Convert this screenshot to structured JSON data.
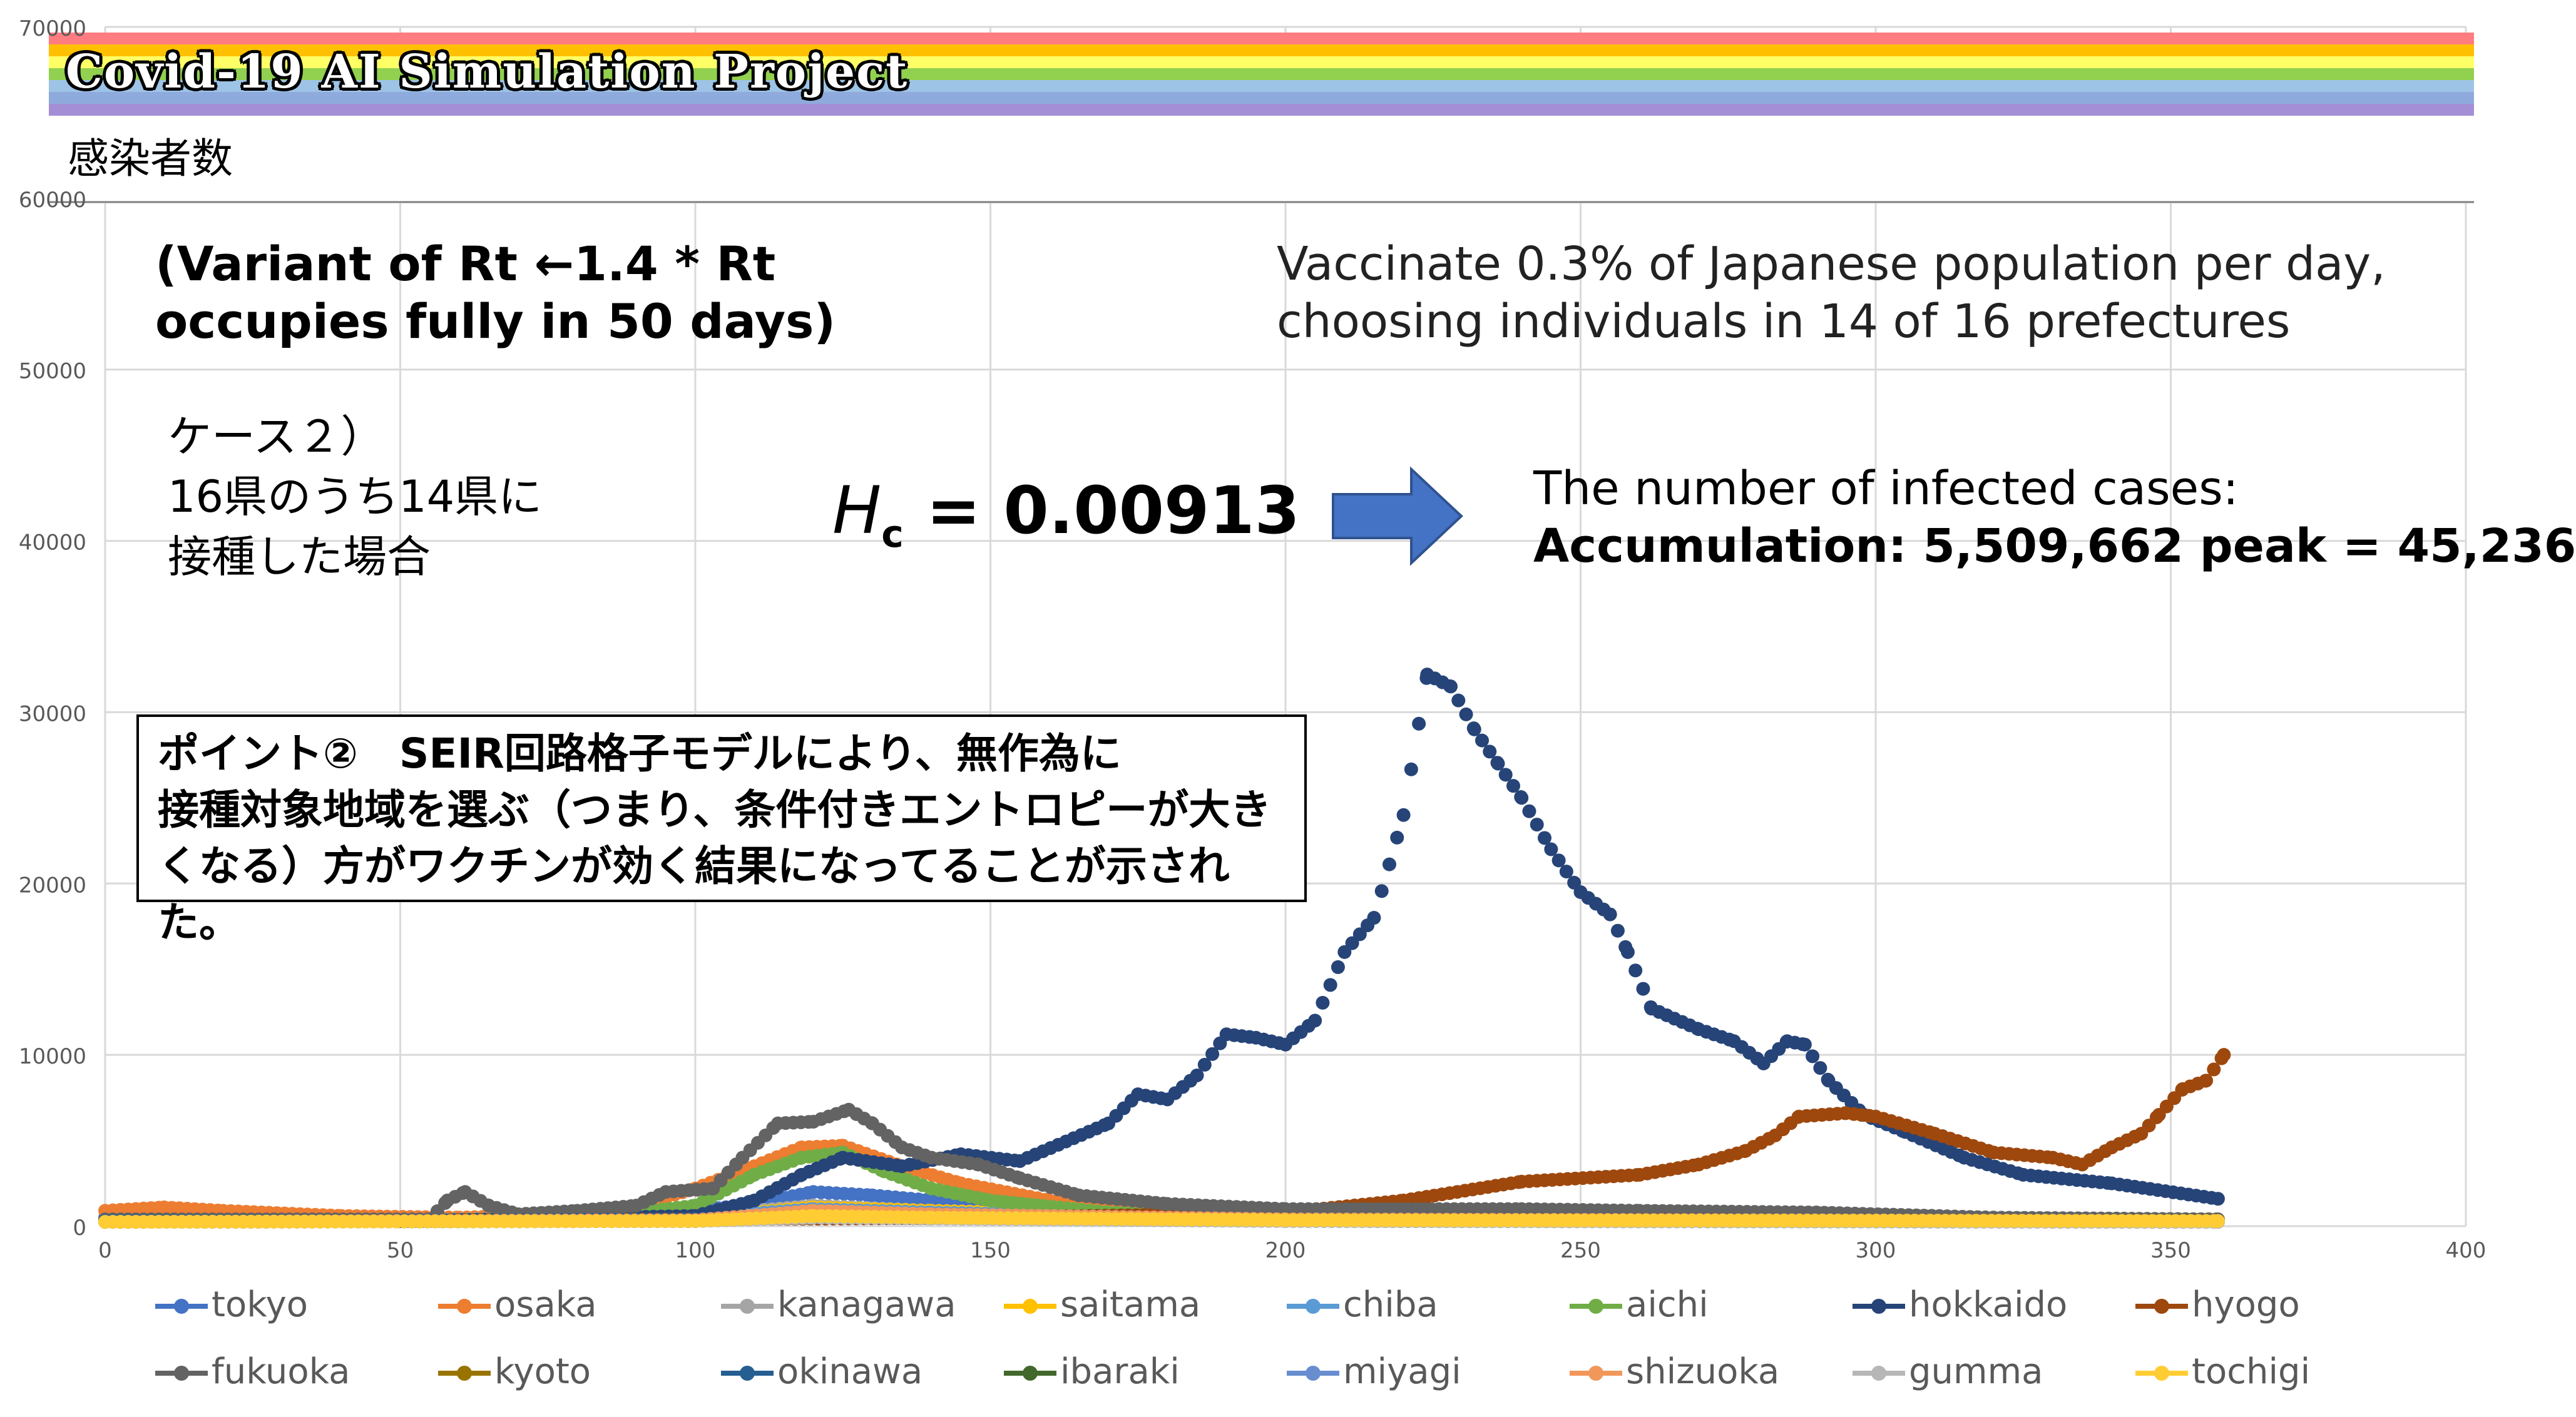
{
  "banner": {
    "title": "Covid-19 AI Simulation Project"
  },
  "header": {
    "jp_title": "感染者数"
  },
  "annotations": {
    "variant_line1": "(Variant of Rt ←1.4 * Rt",
    "variant_line2": "occupies fully in 50 days)",
    "vaccinate_line1": "Vaccinate 0.3% of Japanese population per day,",
    "vaccinate_line2": "choosing individuals in 14 of 16 prefectures",
    "case_line1": "ケース２）",
    "case_line2": "16県のうち14県に",
    "case_line3": "接種した場合",
    "hc_symbol": "H",
    "hc_subscript": "c",
    "hc_value": "= 0.00913",
    "infected_line1": "The number of infected cases:",
    "infected_line2": "Accumulation: 5,509,662 peak = 45,236",
    "point_line1": "ポイント②　SEIR回路格子モデルにより、無作為に",
    "point_line2": "接種対象地域を選ぶ（つまり、条件付きエントロピーが大き",
    "point_line3": "くなる）方がワクチンが効く結果になってることが示された。"
  },
  "colors": {
    "arrow": "#4472c4",
    "rainbow": [
      "#ff7c80",
      "#ffc000",
      "#ffff66",
      "#92d050",
      "#9dc3e6",
      "#8faadc",
      "#a48fd6"
    ]
  },
  "chart_data": {
    "type": "scatter",
    "xlim": [
      0,
      400
    ],
    "ylim": [
      0,
      70000
    ],
    "xticks": [
      0,
      50,
      100,
      150,
      200,
      250,
      300,
      350,
      400
    ],
    "yticks": [
      0,
      10000,
      20000,
      30000,
      40000,
      50000,
      60000,
      70000
    ],
    "grid": true,
    "legend_position": "bottom",
    "series": [
      {
        "name": "tokyo",
        "color": "#4472c4",
        "points": [
          [
            0,
            500
          ],
          [
            20,
            600
          ],
          [
            40,
            450
          ],
          [
            60,
            400
          ],
          [
            80,
            500
          ],
          [
            100,
            900
          ],
          [
            110,
            1300
          ],
          [
            120,
            2000
          ],
          [
            130,
            1800
          ],
          [
            140,
            1500
          ],
          [
            150,
            1000
          ],
          [
            170,
            700
          ],
          [
            200,
            500
          ],
          [
            250,
            400
          ],
          [
            300,
            350
          ],
          [
            358,
            300
          ]
        ]
      },
      {
        "name": "osaka",
        "color": "#ed7d31",
        "points": [
          [
            0,
            900
          ],
          [
            10,
            1100
          ],
          [
            20,
            900
          ],
          [
            40,
            600
          ],
          [
            60,
            500
          ],
          [
            80,
            700
          ],
          [
            90,
            1200
          ],
          [
            100,
            2200
          ],
          [
            110,
            3500
          ],
          [
            118,
            4600
          ],
          [
            125,
            4700
          ],
          [
            135,
            3500
          ],
          [
            145,
            2500
          ],
          [
            160,
            1500
          ],
          [
            180,
            900
          ],
          [
            220,
            600
          ],
          [
            300,
            400
          ],
          [
            358,
            300
          ]
        ]
      },
      {
        "name": "kanagawa",
        "color": "#a5a5a5",
        "points": [
          [
            0,
            400
          ],
          [
            50,
            350
          ],
          [
            100,
            600
          ],
          [
            120,
            1200
          ],
          [
            140,
            900
          ],
          [
            180,
            600
          ],
          [
            250,
            450
          ],
          [
            358,
            350
          ]
        ]
      },
      {
        "name": "saitama",
        "color": "#ffc000",
        "points": [
          [
            0,
            300
          ],
          [
            50,
            300
          ],
          [
            100,
            500
          ],
          [
            120,
            1100
          ],
          [
            140,
            900
          ],
          [
            180,
            600
          ],
          [
            250,
            450
          ],
          [
            358,
            400
          ]
        ]
      },
      {
        "name": "chiba",
        "color": "#5b9bd5",
        "points": [
          [
            0,
            300
          ],
          [
            50,
            300
          ],
          [
            100,
            500
          ],
          [
            120,
            1000
          ],
          [
            140,
            800
          ],
          [
            180,
            500
          ],
          [
            250,
            400
          ],
          [
            358,
            350
          ]
        ]
      },
      {
        "name": "aichi",
        "color": "#70ad47",
        "points": [
          [
            0,
            300
          ],
          [
            80,
            400
          ],
          [
            100,
            1200
          ],
          [
            110,
            3000
          ],
          [
            118,
            4000
          ],
          [
            125,
            4300
          ],
          [
            132,
            3200
          ],
          [
            140,
            2200
          ],
          [
            150,
            1500
          ],
          [
            170,
            800
          ],
          [
            200,
            500
          ],
          [
            358,
            350
          ]
        ]
      },
      {
        "name": "hokkaido",
        "color": "#264478",
        "points": [
          [
            0,
            300
          ],
          [
            50,
            300
          ],
          [
            100,
            600
          ],
          [
            110,
            1500
          ],
          [
            118,
            3000
          ],
          [
            125,
            4000
          ],
          [
            135,
            3500
          ],
          [
            145,
            4200
          ],
          [
            155,
            3800
          ],
          [
            170,
            6000
          ],
          [
            175,
            7700
          ],
          [
            180,
            7400
          ],
          [
            185,
            8800
          ],
          [
            190,
            11200
          ],
          [
            195,
            11000
          ],
          [
            200,
            10600
          ],
          [
            205,
            12000
          ],
          [
            210,
            16000
          ],
          [
            215,
            18000
          ],
          [
            220,
            24000
          ],
          [
            224,
            32200
          ],
          [
            228,
            31500
          ],
          [
            232,
            29000
          ],
          [
            236,
            27000
          ],
          [
            240,
            25000
          ],
          [
            245,
            22000
          ],
          [
            250,
            19500
          ],
          [
            255,
            18200
          ],
          [
            258,
            16000
          ],
          [
            262,
            12700
          ],
          [
            270,
            11500
          ],
          [
            276,
            10800
          ],
          [
            281,
            9500
          ],
          [
            285,
            10800
          ],
          [
            288,
            10600
          ],
          [
            292,
            8500
          ],
          [
            298,
            6500
          ],
          [
            305,
            5500
          ],
          [
            315,
            4000
          ],
          [
            325,
            3000
          ],
          [
            340,
            2500
          ],
          [
            358,
            1600
          ]
        ]
      },
      {
        "name": "hyogo",
        "color": "#9e480e",
        "points": [
          [
            0,
            300
          ],
          [
            100,
            400
          ],
          [
            150,
            500
          ],
          [
            200,
            800
          ],
          [
            220,
            1500
          ],
          [
            240,
            2600
          ],
          [
            260,
            3000
          ],
          [
            270,
            3600
          ],
          [
            278,
            4400
          ],
          [
            283,
            5300
          ],
          [
            287,
            6400
          ],
          [
            295,
            6600
          ],
          [
            300,
            6400
          ],
          [
            310,
            5400
          ],
          [
            320,
            4300
          ],
          [
            330,
            4000
          ],
          [
            335,
            3600
          ],
          [
            340,
            4600
          ],
          [
            345,
            5400
          ],
          [
            348,
            6500
          ],
          [
            352,
            8000
          ],
          [
            356,
            8500
          ],
          [
            359,
            10000
          ]
        ]
      },
      {
        "name": "fukuoka",
        "color": "#636363",
        "points": [
          [
            0,
            400
          ],
          [
            55,
            400
          ],
          [
            58,
            1500
          ],
          [
            61,
            2000
          ],
          [
            65,
            1200
          ],
          [
            70,
            700
          ],
          [
            80,
            900
          ],
          [
            90,
            1200
          ],
          [
            95,
            2000
          ],
          [
            103,
            2200
          ],
          [
            108,
            4000
          ],
          [
            114,
            6000
          ],
          [
            120,
            6100
          ],
          [
            126,
            6800
          ],
          [
            130,
            6000
          ],
          [
            135,
            4600
          ],
          [
            140,
            4000
          ],
          [
            148,
            3600
          ],
          [
            155,
            2800
          ],
          [
            165,
            1800
          ],
          [
            180,
            1300
          ],
          [
            200,
            1000
          ],
          [
            240,
            1000
          ],
          [
            260,
            900
          ],
          [
            290,
            800
          ],
          [
            320,
            500
          ],
          [
            358,
            400
          ]
        ]
      },
      {
        "name": "kyoto",
        "color": "#997300",
        "points": [
          [
            0,
            250
          ],
          [
            100,
            300
          ],
          [
            120,
            700
          ],
          [
            140,
            500
          ],
          [
            200,
            350
          ],
          [
            358,
            300
          ]
        ]
      },
      {
        "name": "okinawa",
        "color": "#255e91",
        "points": [
          [
            0,
            300
          ],
          [
            50,
            300
          ],
          [
            100,
            400
          ],
          [
            120,
            800
          ],
          [
            140,
            700
          ],
          [
            200,
            400
          ],
          [
            358,
            300
          ]
        ]
      },
      {
        "name": "ibaraki",
        "color": "#43682b",
        "points": [
          [
            0,
            250
          ],
          [
            100,
            300
          ],
          [
            120,
            600
          ],
          [
            140,
            500
          ],
          [
            200,
            350
          ],
          [
            358,
            300
          ]
        ]
      },
      {
        "name": "miyagi",
        "color": "#698ed0",
        "points": [
          [
            0,
            250
          ],
          [
            100,
            300
          ],
          [
            120,
            500
          ],
          [
            140,
            450
          ],
          [
            200,
            300
          ],
          [
            358,
            250
          ]
        ]
      },
      {
        "name": "shizuoka",
        "color": "#f1975a",
        "points": [
          [
            0,
            250
          ],
          [
            100,
            350
          ],
          [
            120,
            900
          ],
          [
            140,
            700
          ],
          [
            200,
            400
          ],
          [
            358,
            300
          ]
        ]
      },
      {
        "name": "gumma",
        "color": "#b7b7b7",
        "points": [
          [
            0,
            250
          ],
          [
            100,
            300
          ],
          [
            120,
            500
          ],
          [
            140,
            450
          ],
          [
            200,
            300
          ],
          [
            358,
            250
          ]
        ]
      },
      {
        "name": "tochigi",
        "color": "#ffcd33",
        "points": [
          [
            0,
            250
          ],
          [
            100,
            300
          ],
          [
            120,
            600
          ],
          [
            140,
            500
          ],
          [
            200,
            350
          ],
          [
            358,
            300
          ]
        ]
      }
    ]
  }
}
